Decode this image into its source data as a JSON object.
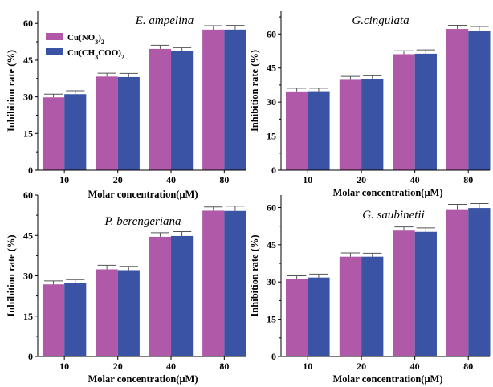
{
  "chart_data": [
    {
      "type": "bar",
      "title": "E. ampelina",
      "xlabel": "Molar concentration(μM)",
      "ylabel": "Inhibition rate (%)",
      "categories": [
        "10",
        "20",
        "40",
        "80"
      ],
      "ylim": [
        0,
        65
      ],
      "yticks": [
        0,
        15,
        30,
        45,
        60
      ],
      "legend": "top-left",
      "series": [
        {
          "name": "Cu(NO3)2",
          "values": [
            29.8,
            38.3,
            49.6,
            57.5
          ],
          "errors": [
            1.3,
            1.4,
            1.5,
            1.6
          ]
        },
        {
          "name": "Cu(CH3COO)2",
          "values": [
            31.1,
            38.1,
            48.7,
            57.5
          ],
          "errors": [
            1.4,
            1.5,
            1.4,
            1.7
          ]
        }
      ]
    },
    {
      "type": "bar",
      "title": "G.cingulata",
      "xlabel": "Molar concentration(μM)",
      "ylabel": "Inhibition rate (%)",
      "categories": [
        "10",
        "20",
        "40",
        "80"
      ],
      "ylim": [
        0,
        70
      ],
      "yticks": [
        0,
        15,
        30,
        45,
        60
      ],
      "series": [
        {
          "name": "Cu(NO3)2",
          "values": [
            34.7,
            39.8,
            51.1,
            62.2
          ],
          "errors": [
            1.4,
            1.5,
            1.5,
            1.6
          ]
        },
        {
          "name": "Cu(CH3COO)2",
          "values": [
            34.8,
            40.0,
            51.3,
            61.5
          ],
          "errors": [
            1.3,
            1.6,
            1.7,
            1.8
          ]
        }
      ]
    },
    {
      "type": "bar",
      "title": "P. berengeriana",
      "xlabel": "Molar concentration(μM)",
      "ylabel": "Inhibition rate (%)",
      "categories": [
        "10",
        "20",
        "40",
        "80"
      ],
      "ylim": [
        0,
        60
      ],
      "yticks": [
        0,
        15,
        30,
        45,
        60
      ],
      "series": [
        {
          "name": "Cu(NO3)2",
          "values": [
            26.8,
            32.4,
            44.5,
            54.2
          ],
          "errors": [
            1.3,
            1.5,
            1.5,
            1.4
          ]
        },
        {
          "name": "Cu(CH3COO)2",
          "values": [
            27.2,
            32.1,
            44.8,
            54.1
          ],
          "errors": [
            1.4,
            1.4,
            1.6,
            1.8
          ]
        }
      ]
    },
    {
      "type": "bar",
      "title": "G. saubinetii",
      "xlabel": "Molar concentration(μM)",
      "ylabel": "Inhibition rate (%)",
      "categories": [
        "10",
        "20",
        "40",
        "80"
      ],
      "ylim": [
        0,
        65
      ],
      "yticks": [
        0,
        15,
        30,
        45,
        60
      ],
      "series": [
        {
          "name": "Cu(NO3)2",
          "values": [
            31.1,
            40.2,
            50.7,
            59.3
          ],
          "errors": [
            1.4,
            1.5,
            1.5,
            2.0
          ]
        },
        {
          "name": "Cu(CH3COO)2",
          "values": [
            31.8,
            40.2,
            50.2,
            59.8
          ],
          "errors": [
            1.4,
            1.4,
            1.6,
            1.8
          ]
        }
      ]
    }
  ],
  "colors": {
    "series_1": "#B059A8",
    "series_2": "#3B53A4",
    "error_bar": "#555555",
    "axis": "#000000"
  }
}
